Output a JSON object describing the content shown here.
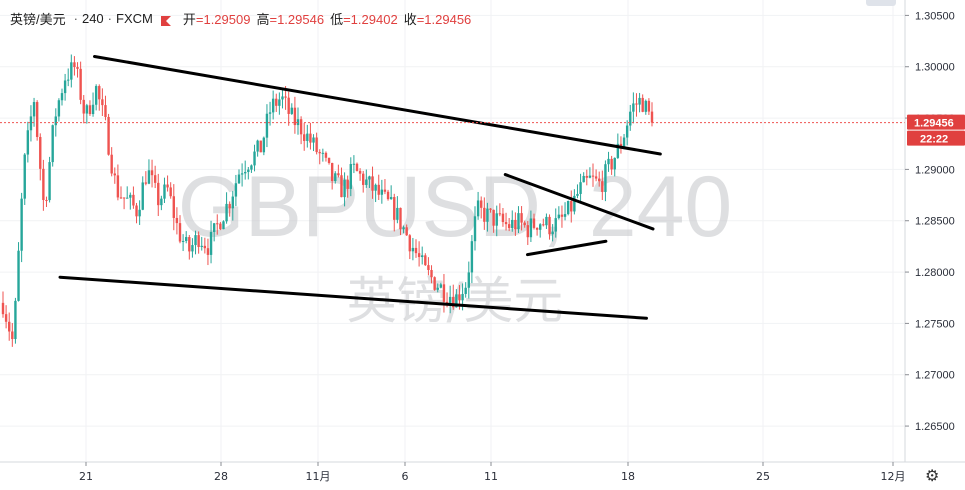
{
  "header": {
    "symbol": "英镑/美元",
    "interval": "240",
    "source": "FXCM",
    "open_label": "开",
    "open": "=1.29509",
    "high_label": "高",
    "high": "=1.29546",
    "low_label": "低",
    "low": "=1.29402",
    "close_label": "收",
    "close": "=1.29456",
    "badge_color": "#e0403f"
  },
  "watermark": {
    "line1": "GBPUSD, 240",
    "line2": "英镑/美元"
  },
  "price_label": {
    "price": "1.29456",
    "countdown": "22:22",
    "color": "#e0403f"
  },
  "chart_data": {
    "type": "candlestick",
    "ylim": [
      1.2615,
      1.3065
    ],
    "y_ticks": [
      "1.30500",
      "1.30000",
      "1.29500",
      "1.29000",
      "1.28500",
      "1.28000",
      "1.27500",
      "1.27000",
      "1.26500"
    ],
    "x_ticks": [
      "21",
      "28",
      "11月",
      "6",
      "11",
      "18",
      "25",
      "12月"
    ],
    "last_price": 1.29456,
    "up_color": "#26a69a",
    "down_color": "#ef5350",
    "trendlines": [
      {
        "from": [
          0.0979,
          1.301
        ],
        "to": [
          0.6843,
          1.2915
        ]
      },
      {
        "from": [
          0.0622,
          1.2795
        ],
        "to": [
          0.6699,
          1.2755
        ]
      },
      {
        "from": [
          0.5236,
          1.2895
        ],
        "to": [
          0.6767,
          1.2842
        ]
      },
      {
        "from": [
          0.5466,
          1.2817
        ],
        "to": [
          0.6279,
          1.283
        ]
      }
    ],
    "path": [
      1.277,
      1.273,
      1.29,
      1.297,
      1.286,
      1.295,
      1.299,
      1.3,
      1.295,
      1.298,
      1.294,
      1.288,
      1.287,
      1.286,
      1.29,
      1.287,
      1.288,
      1.284,
      1.282,
      1.2835,
      1.2825,
      1.285,
      1.287,
      1.29,
      1.291,
      1.292,
      1.296,
      1.297,
      1.295,
      1.294,
      1.2925,
      1.291,
      1.289,
      1.288,
      1.29,
      1.289,
      1.288,
      1.287,
      1.286,
      1.284,
      1.282,
      1.28,
      1.279,
      1.278,
      1.2775,
      1.279,
      1.286,
      1.2855,
      1.285,
      1.2845,
      1.2848,
      1.2842,
      1.285,
      1.2845,
      1.2848,
      1.286,
      1.288,
      1.289,
      1.2885,
      1.2905,
      1.2925,
      1.296,
      1.2968,
      1.2946
    ]
  }
}
